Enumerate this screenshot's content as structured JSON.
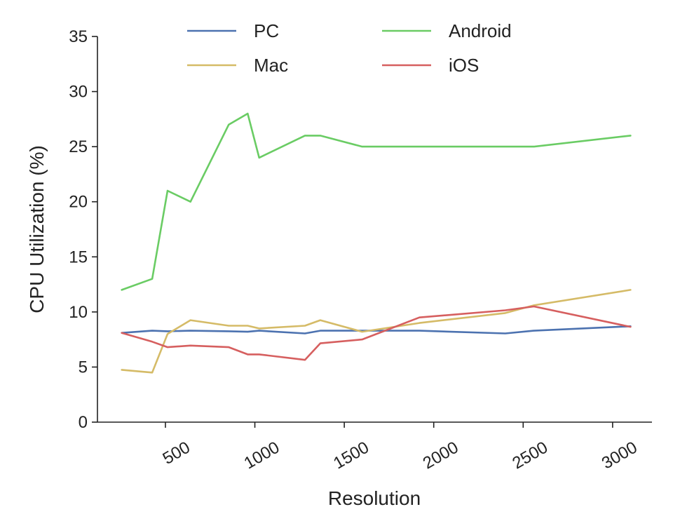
{
  "chart_data": {
    "type": "line",
    "xlabel": "Resolution",
    "ylabel": "CPU Utilization (%)",
    "xlim": [
      120,
      3220
    ],
    "ylim": [
      0,
      35
    ],
    "x_ticks": [
      500,
      1000,
      1500,
      2000,
      2500,
      3000
    ],
    "y_ticks": [
      0,
      5,
      10,
      15,
      20,
      25,
      30,
      35
    ],
    "grid": false,
    "legend_position": "top-center",
    "series": [
      {
        "name": "PC",
        "color": "#4c72b0",
        "points": [
          [
            256,
            8.1
          ],
          [
            426,
            8.3
          ],
          [
            512,
            8.25
          ],
          [
            640,
            8.3
          ],
          [
            854,
            8.25
          ],
          [
            960,
            8.2
          ],
          [
            1024,
            8.3
          ],
          [
            1280,
            8.05
          ],
          [
            1366,
            8.3
          ],
          [
            1600,
            8.3
          ],
          [
            1920,
            8.3
          ],
          [
            2400,
            8.05
          ],
          [
            2560,
            8.3
          ],
          [
            3100,
            8.7
          ]
        ]
      },
      {
        "name": "Android",
        "color": "#6acc64",
        "points": [
          [
            256,
            12
          ],
          [
            426,
            13
          ],
          [
            512,
            21
          ],
          [
            640,
            20
          ],
          [
            854,
            27
          ],
          [
            960,
            28
          ],
          [
            1024,
            24
          ],
          [
            1280,
            26
          ],
          [
            1366,
            26
          ],
          [
            1600,
            25
          ],
          [
            1920,
            25
          ],
          [
            2400,
            25
          ],
          [
            2560,
            25
          ],
          [
            3100,
            26
          ]
        ]
      },
      {
        "name": "Mac",
        "color": "#d5bb67",
        "points": [
          [
            256,
            4.75
          ],
          [
            426,
            4.5
          ],
          [
            512,
            8
          ],
          [
            640,
            9.25
          ],
          [
            854,
            8.75
          ],
          [
            960,
            8.75
          ],
          [
            1024,
            8.5
          ],
          [
            1280,
            8.75
          ],
          [
            1366,
            9.25
          ],
          [
            1600,
            8.2
          ],
          [
            1920,
            9
          ],
          [
            2400,
            9.9
          ],
          [
            2560,
            10.6
          ],
          [
            3100,
            12
          ]
        ]
      },
      {
        "name": "iOS",
        "color": "#d65f5f",
        "points": [
          [
            256,
            8.1
          ],
          [
            426,
            7.3
          ],
          [
            512,
            6.8
          ],
          [
            640,
            6.95
          ],
          [
            854,
            6.8
          ],
          [
            960,
            6.15
          ],
          [
            1024,
            6.15
          ],
          [
            1280,
            5.65
          ],
          [
            1366,
            7.15
          ],
          [
            1600,
            7.5
          ],
          [
            1920,
            9.5
          ],
          [
            2400,
            10.15
          ],
          [
            2560,
            10.5
          ],
          [
            3100,
            8.65
          ]
        ]
      }
    ]
  }
}
